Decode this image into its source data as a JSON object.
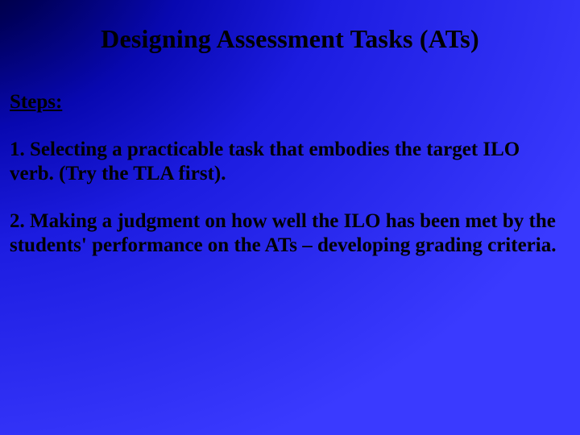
{
  "title": {
    "text": "Designing Assessment Tasks (ATs)",
    "fontsize": 32,
    "color": "#000000",
    "weight": "bold"
  },
  "subheading": {
    "text": "Steps:",
    "fontsize": 25,
    "color": "#000000",
    "weight": "bold",
    "underline": true
  },
  "steps": [
    {
      "text": "1.  Selecting a practicable task that embodies the target ILO verb. (Try the TLA first).",
      "fontsize": 25,
      "color": "#000000",
      "weight": "bold"
    },
    {
      "text": "2.  Making a judgment on how well the ILO has been met by the students' performance on the ATs – developing grading criteria.",
      "fontsize": 25,
      "color": "#000000",
      "weight": "bold"
    }
  ],
  "background": {
    "type": "radial-gradient",
    "colors": [
      "#000000",
      "#000033",
      "#00005a",
      "#0808b0",
      "#1c1ce0",
      "#3a3aff"
    ]
  },
  "font_family": "Times New Roman"
}
